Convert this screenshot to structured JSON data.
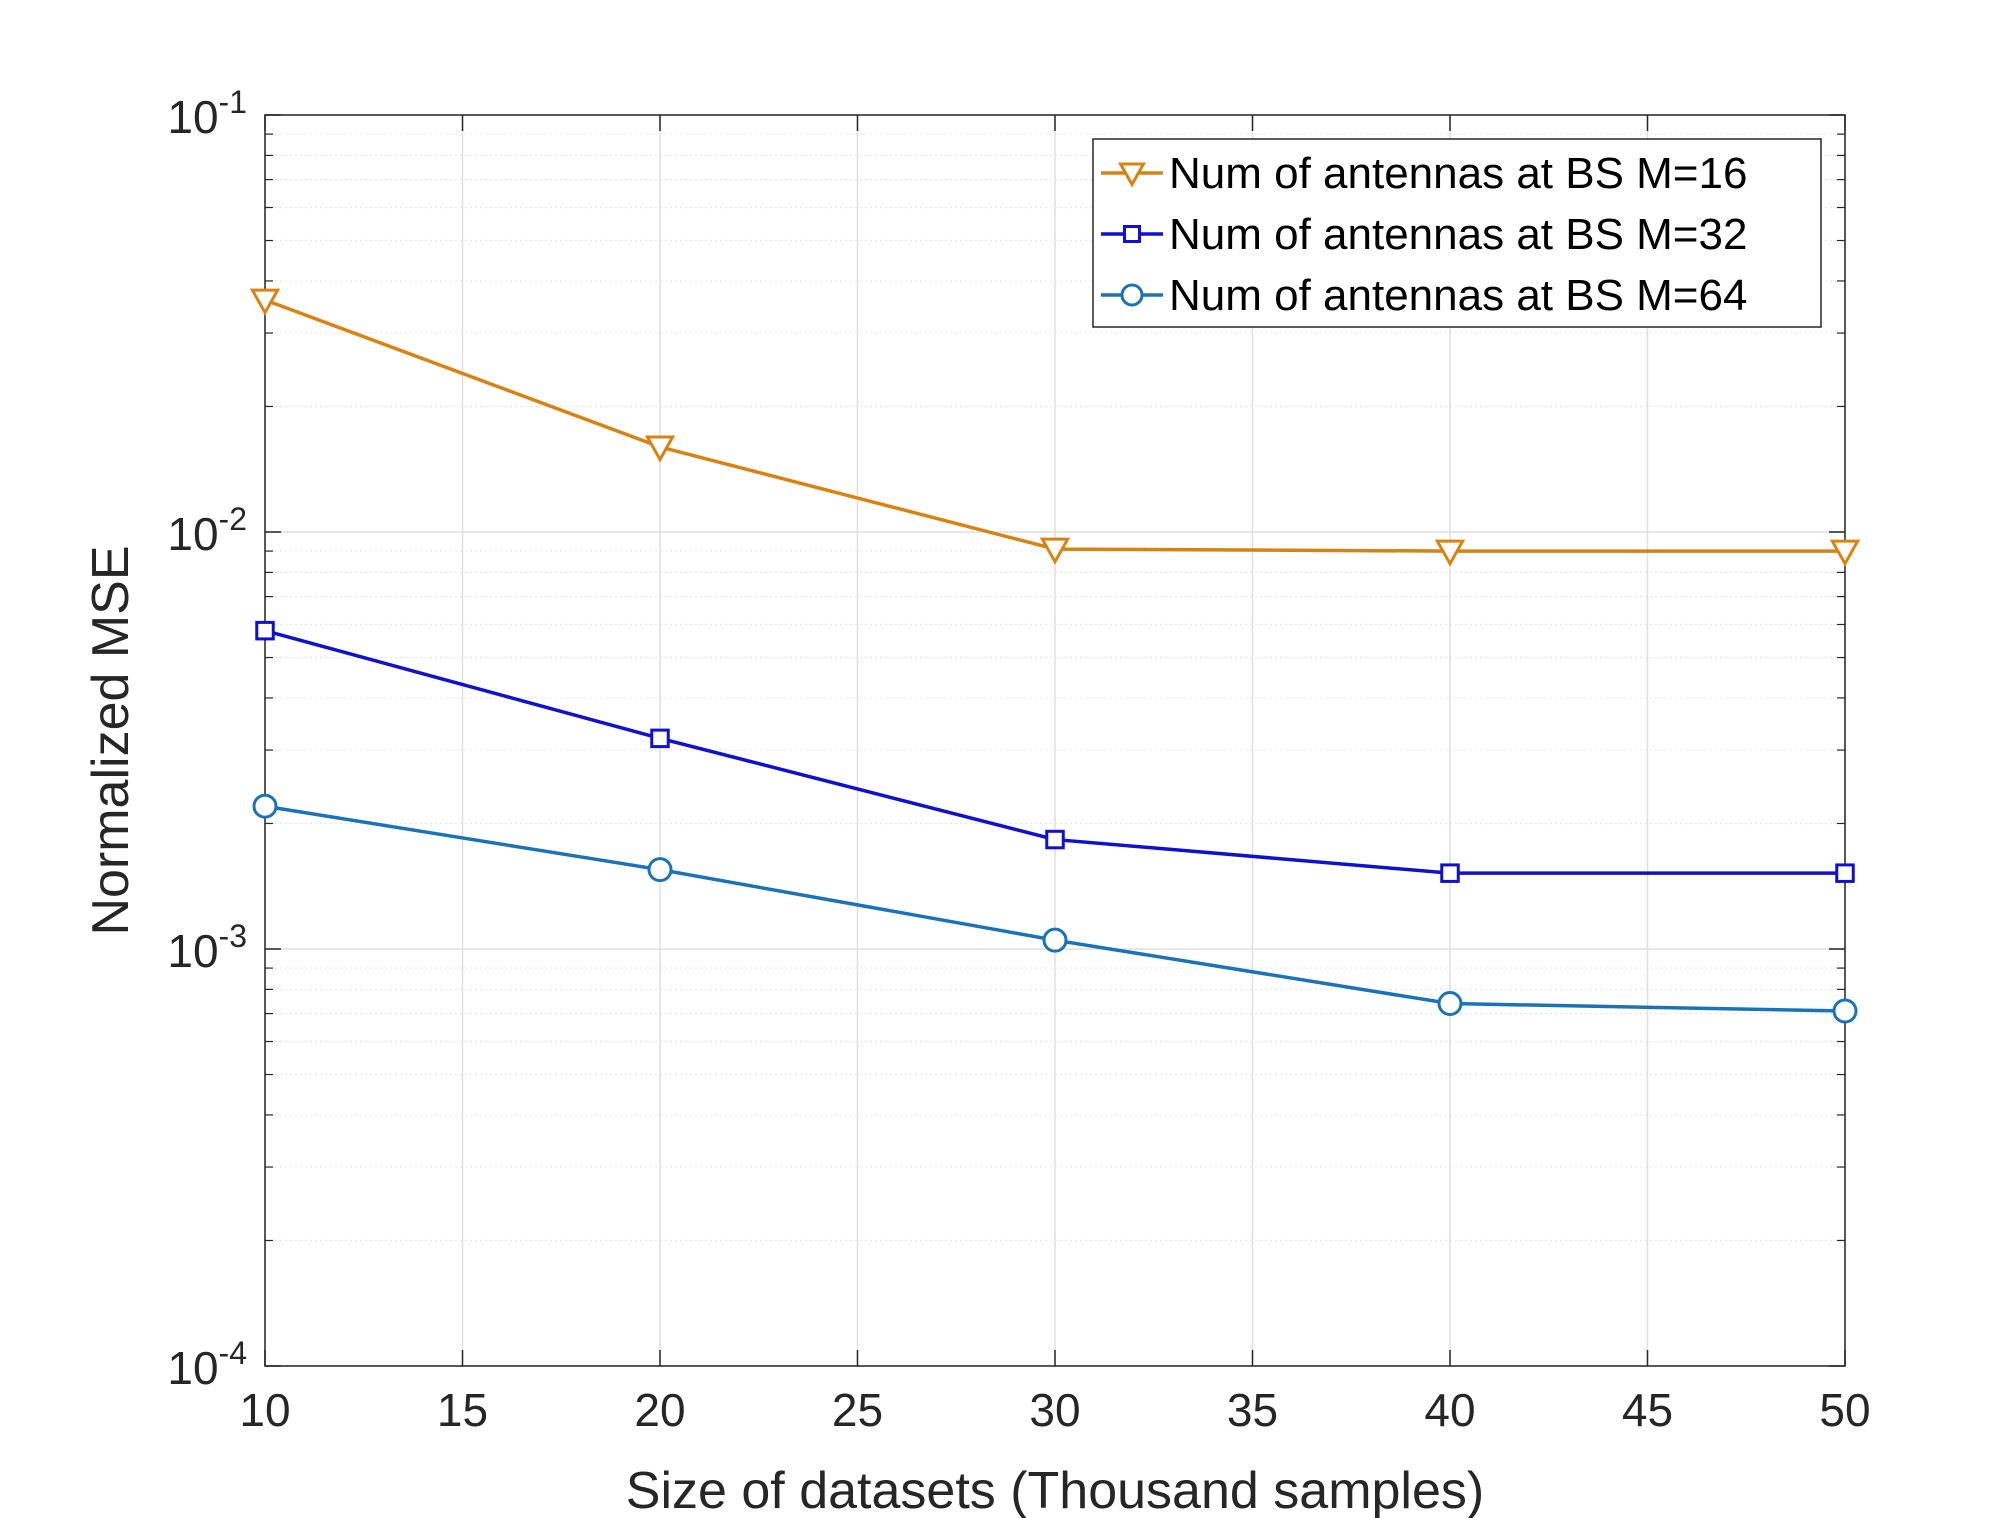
{
  "chart_data": {
    "type": "line",
    "xlabel": "Size of datasets (Thousand samples)",
    "ylabel": "Normalized MSE",
    "xlim": [
      10,
      50
    ],
    "ylim": [
      0.0001,
      0.1
    ],
    "yscale": "log",
    "grid": true,
    "legend_position": "top-right",
    "x_ticks": [
      10,
      15,
      20,
      25,
      30,
      35,
      40,
      45,
      50
    ],
    "x_tick_labels": [
      "10",
      "15",
      "20",
      "25",
      "30",
      "35",
      "40",
      "45",
      "50"
    ],
    "y_ticks": [
      0.0001,
      0.001,
      0.01,
      0.1
    ],
    "y_tick_bases": [
      "10",
      "10",
      "10",
      "10"
    ],
    "y_tick_exps": [
      "-4",
      "-3",
      "-2",
      "-1"
    ],
    "x": [
      10,
      20,
      30,
      40,
      50
    ],
    "series": [
      {
        "name": "Num of antennas at BS M=16",
        "values": [
          0.036,
          0.016,
          0.0091,
          0.009,
          0.009
        ],
        "marker": "triangle-down",
        "color": "#D9820F"
      },
      {
        "name": "Num of antennas at BS M=32",
        "values": [
          0.0058,
          0.0032,
          0.00183,
          0.00152,
          0.00152
        ],
        "marker": "square",
        "color": "#1010D0"
      },
      {
        "name": "Num of antennas at BS M=64",
        "values": [
          0.0022,
          0.00155,
          0.00105,
          0.00074,
          0.00071
        ],
        "marker": "circle",
        "color": "#1A72B8"
      }
    ]
  }
}
